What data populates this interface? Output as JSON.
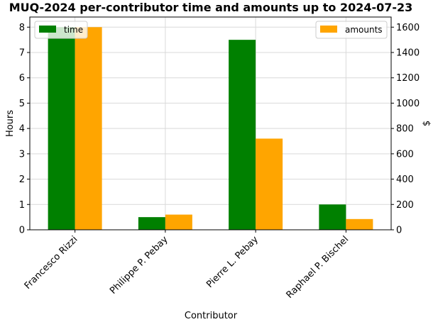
{
  "chart_data": {
    "type": "bar",
    "title": "MUQ-2024 per-contributor time and amounts up to 2024-07-23",
    "xlabel": "Contributor",
    "ylabel_left": "Hours",
    "ylabel_right": "$",
    "categories": [
      "Francesco Rizzi",
      "Philippe P. Pebay",
      "Pierre L. Pebay",
      "Raphael P. Bischel"
    ],
    "series": [
      {
        "name": "time",
        "axis": "left",
        "color": "#008000",
        "values": [
          8.0,
          0.5,
          7.5,
          1.0
        ]
      },
      {
        "name": "amounts",
        "axis": "right",
        "color": "#FFA500",
        "values": [
          1600,
          120,
          720,
          85
        ]
      }
    ],
    "ylim_left": [
      0,
      8.4
    ],
    "ylim_right": [
      0,
      1680
    ],
    "yticks_left": [
      "0",
      "1",
      "2",
      "3",
      "4",
      "5",
      "6",
      "7",
      "8"
    ],
    "yticks_right": [
      "0",
      "200",
      "400",
      "600",
      "800",
      "1000",
      "1200",
      "1400",
      "1600"
    ],
    "grid": true,
    "legend_left_placement": "upper-left",
    "legend_right_placement": "upper-right"
  }
}
